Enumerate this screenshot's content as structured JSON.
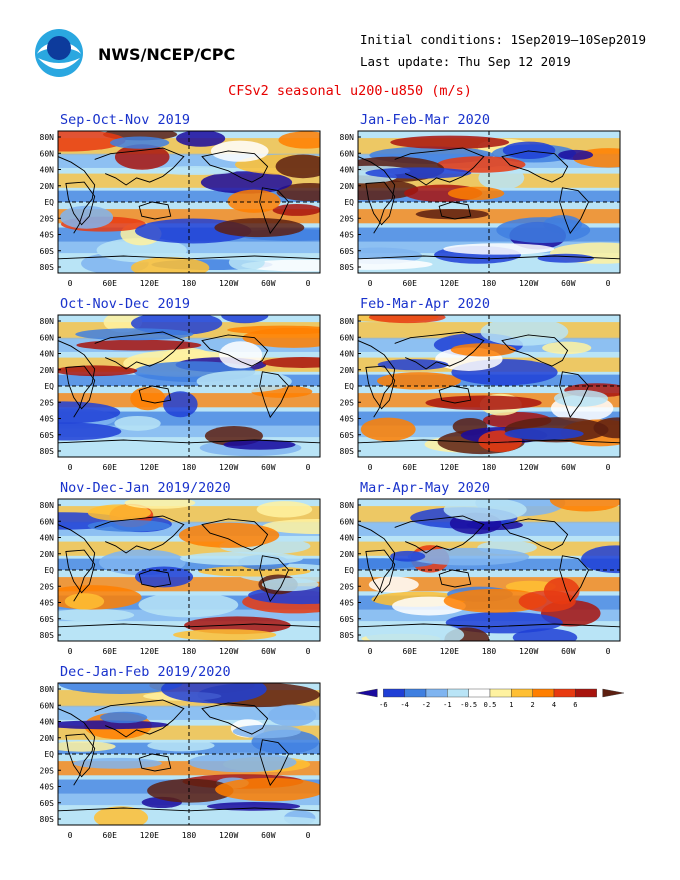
{
  "header": {
    "org": "NWS/NCEP/CPC",
    "initial_conditions": "Initial conditions: 1Sep2019–10Sep2019",
    "last_update": "Last update: Thu Sep 12 2019",
    "title": "CFSv2 seasonal u200-u850 (m/s)"
  },
  "axes": {
    "lat_labels": [
      "80N",
      "60N",
      "40N",
      "20N",
      "EQ",
      "20S",
      "40S",
      "60S",
      "80S"
    ],
    "lon_labels": [
      "0",
      "60E",
      "120E",
      "180",
      "120W",
      "60W",
      "0"
    ]
  },
  "panels": [
    {
      "id": "son",
      "title": "Sep-Oct-Nov 2019"
    },
    {
      "id": "ond",
      "title": "Oct-Nov-Dec 2019"
    },
    {
      "id": "ndj",
      "title": "Nov-Dec-Jan 2019/2020"
    },
    {
      "id": "djf",
      "title": "Dec-Jan-Feb 2019/2020"
    },
    {
      "id": "jfm",
      "title": "Jan-Feb-Mar 2020"
    },
    {
      "id": "fma",
      "title": "Feb-Mar-Apr 2020"
    },
    {
      "id": "mam",
      "title": "Mar-Apr-May 2020"
    }
  ],
  "colorbar": {
    "labels": [
      "-6",
      "-4",
      "-2",
      "-1",
      "-0.5",
      "0.5",
      "1",
      "2",
      "4",
      "6"
    ],
    "colors": [
      "#1a0a9e",
      "#1f3fd6",
      "#3f7fe0",
      "#7fb4f0",
      "#b9e4f6",
      "#ffffff",
      "#fff2a0",
      "#ffbf33",
      "#ff7f00",
      "#e83a10",
      "#a8140e",
      "#5c1f10"
    ]
  }
}
